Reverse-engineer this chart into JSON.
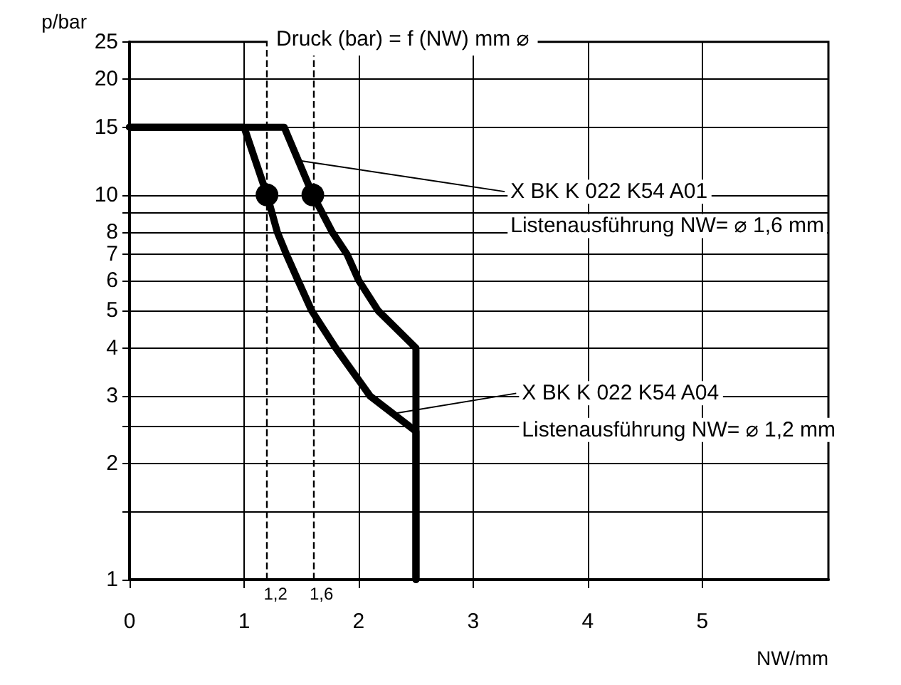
{
  "chart_data": {
    "type": "line",
    "title": "Druck (bar) = f (NW) mm ⌀",
    "xlabel": "NW/mm",
    "ylabel": "p/bar",
    "log": "y",
    "xlim": [
      0,
      6.1
    ],
    "xticks": [
      0,
      1,
      2,
      3,
      4,
      5
    ],
    "ylim": [
      1,
      25
    ],
    "yticks": [
      1,
      {
        "value": 1.5,
        "label": null
      },
      2,
      {
        "value": 2.5,
        "label": null
      },
      3,
      4,
      5,
      6,
      7,
      8,
      {
        "value": 9,
        "label": null
      },
      10,
      15,
      20,
      25
    ],
    "grid": true,
    "marker": "none",
    "line_style": "solid",
    "series": [
      {
        "color": "#000000",
        "x": [
          0,
          1.35,
          1.6,
          1.77,
          1.9,
          2.0,
          2.17,
          2.5,
          2.5
        ],
        "values": [
          15,
          15,
          10,
          8,
          7,
          6,
          5,
          4,
          1
        ]
      },
      {
        "color": "#000000",
        "x": [
          0,
          1.0,
          1.2,
          1.29,
          1.37,
          1.47,
          1.59,
          1.8,
          2.1,
          2.5,
          2.5
        ],
        "values": [
          15,
          15,
          10,
          8,
          7,
          6,
          5,
          4,
          3,
          2.43,
          1
        ]
      },
      {
        "type": "scatter",
        "marker": "circle",
        "color": "#000000",
        "x": [
          1.2,
          1.6
        ],
        "values": [
          10,
          10
        ]
      }
    ],
    "ref_lines": [
      {
        "axis": "x",
        "value": 1.2,
        "label": "1,2",
        "line_style": "dashed"
      },
      {
        "axis": "x",
        "value": 1.6,
        "label": "1,6",
        "line_style": "dashed"
      }
    ],
    "annotations": [
      {
        "text": "X BK K 022 K54 A01",
        "x": 1.47,
        "y": 12.3
      },
      "Listenausführung NW= ⌀ 1,6 mm",
      {
        "text": "X BK K 022 K54 A04",
        "x": 2.3,
        "y": 2.7
      },
      "Listenausführung NW= ⌀ 1,2 mm"
    ]
  }
}
